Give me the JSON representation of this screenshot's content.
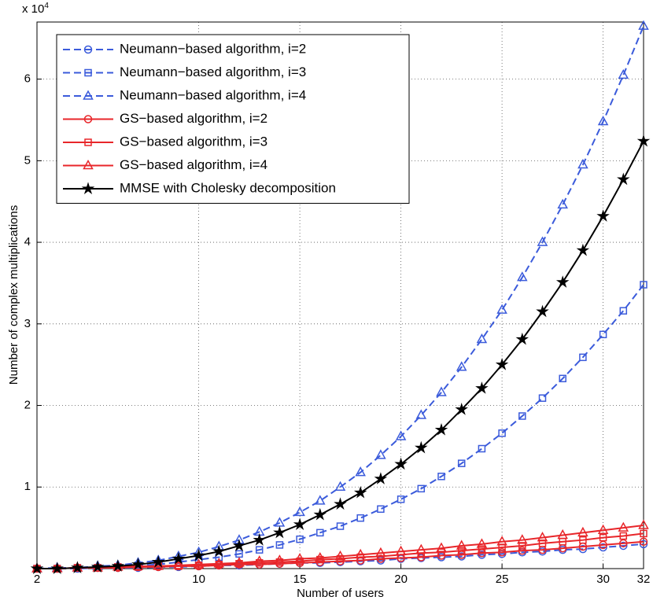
{
  "chart_data": {
    "type": "line",
    "x_label": "Number of users",
    "y_label": "Number of complex multiplications",
    "y_multiplier": {
      "base": "x 10",
      "exponent": "4"
    },
    "x": [
      2,
      3,
      4,
      5,
      6,
      7,
      8,
      9,
      10,
      11,
      12,
      13,
      14,
      15,
      16,
      17,
      18,
      19,
      20,
      21,
      22,
      23,
      24,
      25,
      26,
      27,
      28,
      29,
      30,
      31,
      32
    ],
    "xlim": [
      2,
      32
    ],
    "xticks": [
      2,
      10,
      15,
      20,
      25,
      30,
      32
    ],
    "ylim": [
      0,
      6.7
    ],
    "yticks": [
      1,
      2,
      3,
      4,
      5,
      6
    ],
    "grid": true,
    "legend": "upper left",
    "series": [
      {
        "name": "Neumann−based algorithm, i=2",
        "color": "#3b5bdb",
        "line": "dashed",
        "marker": "circle",
        "values": [
          0.0,
          0.0,
          0.0,
          0.01,
          0.01,
          0.01,
          0.02,
          0.02,
          0.03,
          0.04,
          0.04,
          0.05,
          0.06,
          0.07,
          0.07,
          0.08,
          0.09,
          0.1,
          0.12,
          0.13,
          0.14,
          0.15,
          0.17,
          0.18,
          0.2,
          0.21,
          0.23,
          0.24,
          0.26,
          0.28,
          0.3
        ]
      },
      {
        "name": "Neumann−based algorithm, i=3",
        "color": "#3b5bdb",
        "line": "dashed",
        "marker": "square",
        "values": [
          0.0,
          0.0,
          0.01,
          0.01,
          0.02,
          0.04,
          0.05,
          0.08,
          0.11,
          0.14,
          0.18,
          0.23,
          0.29,
          0.36,
          0.44,
          0.52,
          0.62,
          0.73,
          0.85,
          0.98,
          1.13,
          1.29,
          1.47,
          1.66,
          1.87,
          2.09,
          2.33,
          2.59,
          2.87,
          3.16,
          3.48
        ]
      },
      {
        "name": "Neumann−based algorithm, i=4",
        "color": "#3b5bdb",
        "line": "dashed",
        "marker": "triangle",
        "values": [
          0.0,
          0.01,
          0.01,
          0.03,
          0.04,
          0.07,
          0.1,
          0.15,
          0.2,
          0.27,
          0.35,
          0.45,
          0.56,
          0.69,
          0.83,
          1.0,
          1.18,
          1.39,
          1.62,
          1.88,
          2.16,
          2.47,
          2.81,
          3.17,
          3.57,
          4.0,
          4.46,
          4.95,
          5.48,
          6.05,
          6.65
        ]
      },
      {
        "name": "GS−based algorithm, i=2",
        "color": "#e8262a",
        "line": "solid",
        "marker": "circle",
        "values": [
          0.0,
          0.0,
          0.01,
          0.01,
          0.01,
          0.02,
          0.02,
          0.03,
          0.03,
          0.04,
          0.05,
          0.05,
          0.06,
          0.07,
          0.08,
          0.09,
          0.1,
          0.12,
          0.13,
          0.14,
          0.16,
          0.17,
          0.19,
          0.2,
          0.22,
          0.23,
          0.25,
          0.27,
          0.29,
          0.31,
          0.33
        ]
      },
      {
        "name": "GS−based algorithm, i=3",
        "color": "#e8262a",
        "line": "solid",
        "marker": "square",
        "values": [
          0.0,
          0.0,
          0.01,
          0.01,
          0.02,
          0.02,
          0.03,
          0.03,
          0.04,
          0.05,
          0.06,
          0.07,
          0.08,
          0.09,
          0.11,
          0.12,
          0.14,
          0.15,
          0.17,
          0.19,
          0.2,
          0.22,
          0.24,
          0.26,
          0.28,
          0.31,
          0.33,
          0.35,
          0.38,
          0.4,
          0.43
        ]
      },
      {
        "name": "GS−based algorithm, i=4",
        "color": "#e8262a",
        "line": "solid",
        "marker": "triangle",
        "values": [
          0.0,
          0.0,
          0.01,
          0.01,
          0.02,
          0.03,
          0.03,
          0.04,
          0.05,
          0.06,
          0.07,
          0.09,
          0.1,
          0.12,
          0.13,
          0.15,
          0.17,
          0.19,
          0.21,
          0.23,
          0.25,
          0.28,
          0.3,
          0.33,
          0.35,
          0.38,
          0.41,
          0.44,
          0.47,
          0.5,
          0.53
        ]
      },
      {
        "name": "MMSE with Cholesky decomposition",
        "color": "#000000",
        "line": "solid",
        "marker": "star",
        "values": [
          0.0,
          0.0,
          0.01,
          0.02,
          0.03,
          0.05,
          0.08,
          0.12,
          0.16,
          0.21,
          0.28,
          0.35,
          0.44,
          0.54,
          0.66,
          0.79,
          0.93,
          1.1,
          1.28,
          1.48,
          1.7,
          1.95,
          2.21,
          2.5,
          2.81,
          3.15,
          3.51,
          3.9,
          4.32,
          4.77,
          5.24
        ]
      }
    ]
  }
}
